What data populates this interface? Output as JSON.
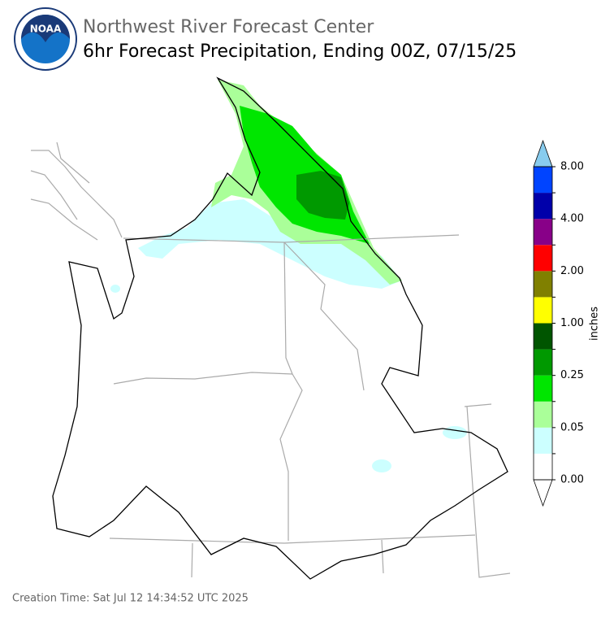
{
  "header": {
    "logo_text": "NOAA",
    "title": "Northwest River Forecast Center",
    "subtitle": "6hr Forecast Precipitation, Ending 00Z, 07/15/25"
  },
  "legend": {
    "label": "inches",
    "ticks": [
      "0.00",
      "0.05",
      "0.25",
      "1.00",
      "2.00",
      "4.00",
      "8.00"
    ],
    "colors": [
      "#ffffff",
      "#ccffff",
      "#aaff99",
      "#00e600",
      "#009900",
      "#005500",
      "#ffff00",
      "#808000",
      "#ff0000",
      "#880088",
      "#0000aa",
      "#0044ff"
    ],
    "under_color": "#ffffff",
    "over_color": "#88ccee"
  },
  "footer": {
    "creation_time": "Creation Time: Sat Jul 12 14:34:52 UTC 2025"
  }
}
